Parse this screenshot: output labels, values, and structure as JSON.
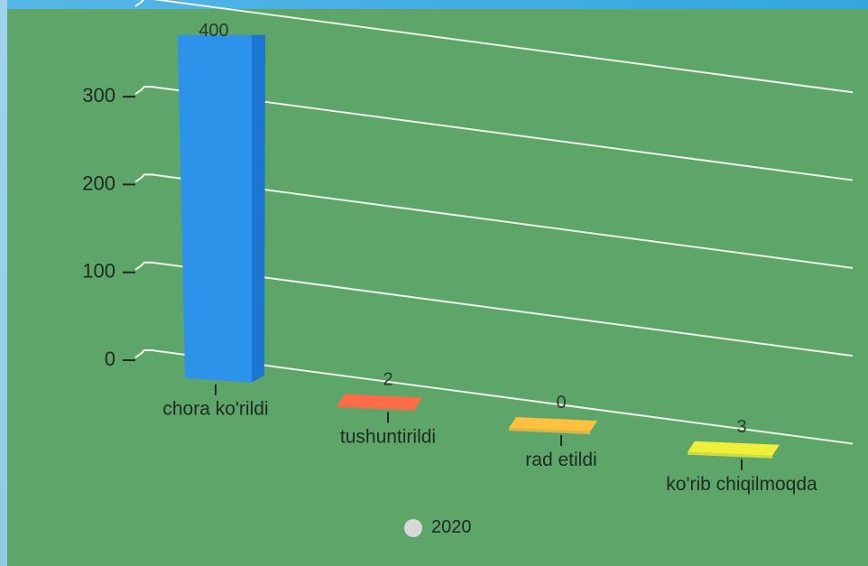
{
  "chart_data": {
    "type": "bar",
    "categories": [
      "chora ko'rildi",
      "tushuntirildi",
      "rad etildi",
      "ko'rib chiqilmoqda"
    ],
    "series": [
      {
        "name": "2020",
        "values": [
          400,
          2,
          0,
          3
        ]
      }
    ],
    "colors": [
      "#2d93ea",
      "#ff6b47",
      "#ffbf3f",
      "#f0ef3a"
    ],
    "ylim": [
      0,
      400
    ],
    "yticks": [
      0,
      100,
      200,
      300
    ],
    "data_labels": [
      "400",
      "2",
      "0",
      "3"
    ],
    "grid": true,
    "legend": "bottom-center",
    "legend_color": "#d8d8d8"
  }
}
